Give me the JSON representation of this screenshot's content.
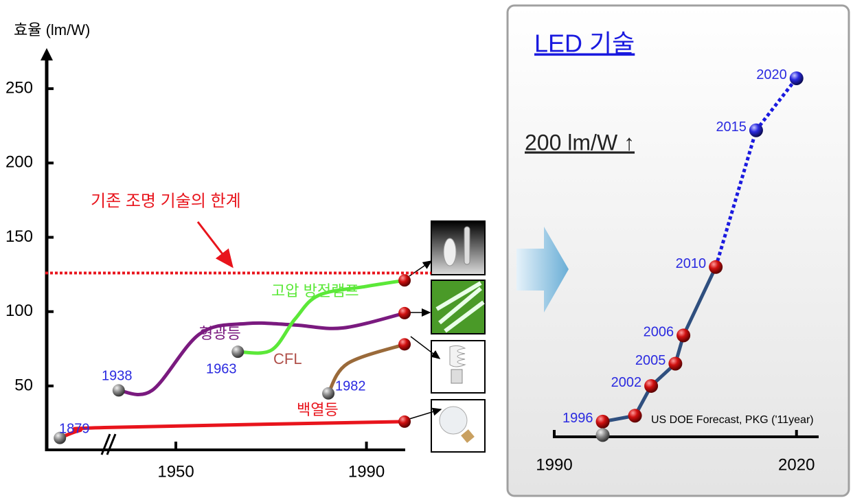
{
  "chart_data": [
    {
      "type": "line",
      "y_label": "효율 (lm/W)",
      "ylim": [
        7,
        275
      ],
      "yticks": [
        50,
        100,
        150,
        200,
        250
      ],
      "xlim": [
        1875,
        1999
      ],
      "xbreak": [
        1885,
        1935
      ],
      "xticks": [
        1950,
        1990
      ],
      "limit_value": 126,
      "limit_label": "기존 조명 기술의 한계",
      "limit_color": "#e8141c",
      "series": [
        {
          "name": "백열등",
          "color": "#e8141c",
          "x": [
            1879,
            1885,
            1935,
            1998
          ],
          "values": [
            15,
            20,
            22,
            26
          ]
        },
        {
          "name": "형광등",
          "color": "#7a1a7f",
          "x": [
            1938,
            1945,
            1955,
            1965,
            1975,
            1985,
            1998
          ],
          "values": [
            47,
            47,
            85,
            92,
            91,
            89,
            99
          ]
        },
        {
          "name": "고압 방전램프",
          "color": "#5be838",
          "x": [
            1963,
            1970,
            1975,
            1980,
            1990,
            1998
          ],
          "values": [
            73,
            74,
            95,
            111,
            117,
            121
          ]
        },
        {
          "name": "CFL",
          "color": "#9a6a3a",
          "x": [
            1982,
            1986,
            1998
          ],
          "values": [
            45,
            65,
            78
          ]
        }
      ]
    },
    {
      "type": "line",
      "title": "LED 기술",
      "annotation": "200 lm/W ↑",
      "note": "US DOE Forecast, PKG ('11year)",
      "ylim": [
        7,
        275
      ],
      "xlim": [
        1990,
        2023
      ],
      "xticks": [
        1990,
        2020
      ],
      "series": [
        {
          "color": "#2f4f7f",
          "style": "solid",
          "marker": "red",
          "x": [
            1996,
            2000,
            2002,
            2005,
            2006,
            2010
          ],
          "values": [
            26,
            30,
            50,
            65,
            84,
            130
          ],
          "labeled": [
            true,
            false,
            true,
            true,
            true,
            true
          ]
        },
        {
          "color": "#1a1adf",
          "style": "dotted",
          "marker": "blue",
          "x": [
            2010,
            2015,
            2020
          ],
          "values": [
            130,
            222,
            257
          ],
          "labeled": [
            false,
            true,
            true
          ]
        },
        {
          "color": "#888888",
          "style": "solid",
          "marker": "gray",
          "x": [
            1996
          ],
          "values": [
            17
          ],
          "labeled": [
            false
          ]
        }
      ]
    }
  ]
}
